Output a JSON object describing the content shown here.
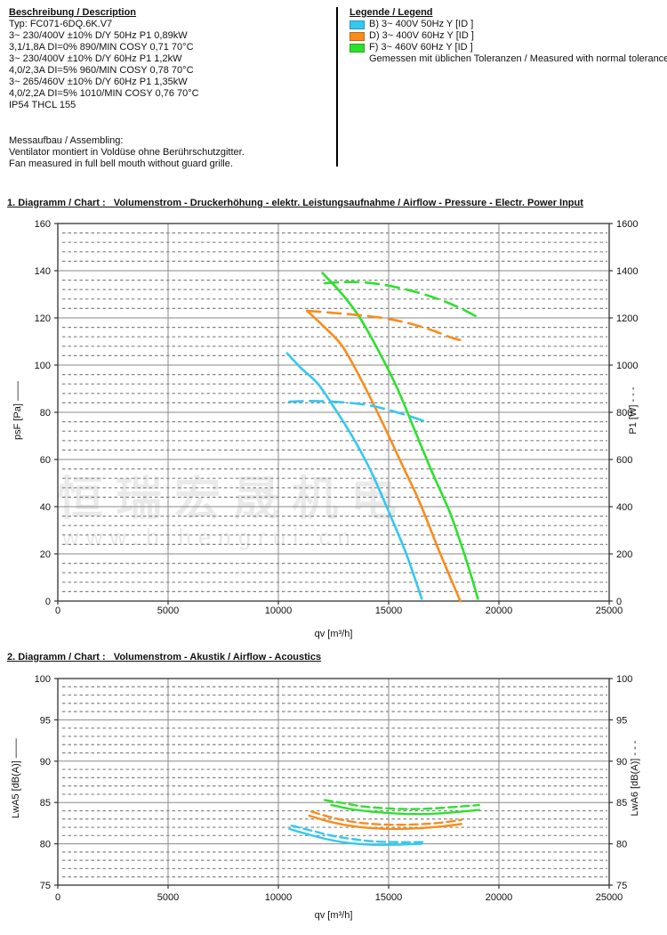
{
  "description": {
    "heading": "Beschreibung / Description",
    "lines": [
      "Typ: FC071-6DQ.6K.V7",
      "3~ 230/400V ±10% D/Y 50Hz P1 0,89kW",
      "3,1/1,8A DI=0% 890/MIN COSY 0,71 70°C",
      "3~ 230/400V ±10% D/Y 60Hz P1 1,2kW",
      "4,0/2,3A DI=5% 960/MIN COSY 0,78 70°C",
      "3~ 265/460V ±10% D/Y 60Hz P1 1,35kW",
      "4,0/2,2A DI=5% 1010/MIN COSY 0,76 70°C",
      "IP54 THCL 155"
    ],
    "assembling": [
      "Messaufbau / Assembling:",
      "Ventilator montiert in Voldüse ohne Berührschutzgitter.",
      "Fan measured in full bell mouth without guard grille."
    ]
  },
  "legend": {
    "heading": "Legende / Legend",
    "items": [
      {
        "key": "B",
        "label": "B) 3~ 400V 50Hz Y [ID ]",
        "color": "#35c8f0"
      },
      {
        "key": "D",
        "label": "D) 3~ 400V 60Hz Y [ID ]",
        "color": "#fa8c1c"
      },
      {
        "key": "F",
        "label": "F) 3~ 460V 60Hz Y [ID ]",
        "color": "#2ee02e"
      }
    ],
    "note": "Gemessen mit üblichen Toleranzen / Measured with normal tolerances"
  },
  "watermark": {
    "text": "恒瑞宏晟机电",
    "url": "www.bjhengrui.cn"
  },
  "chart_data": [
    {
      "type": "line",
      "title": "1. Diagramm / Chart :   Volumenstrom - Druckerhöhung - elektr. Leistungsaufnahme / Airflow - Pressure - Electr. Power Input",
      "xlabel": "qv [m³/h]",
      "ylabel_left": "psF [Pa] ——",
      "ylabel_right": "P1 [W] - - -",
      "xlim": [
        0,
        25000
      ],
      "xticks": [
        0,
        5000,
        10000,
        15000,
        20000,
        25000
      ],
      "ylim_left": [
        0,
        160
      ],
      "yticks_left": [
        0,
        20,
        40,
        60,
        80,
        100,
        120,
        140,
        160
      ],
      "ylim_right": [
        0,
        1600
      ],
      "yticks_right": [
        0,
        200,
        400,
        600,
        800,
        1000,
        1200,
        1400,
        1600
      ],
      "minor_step": 4,
      "grid": true,
      "legend_position": "top-right-of-page",
      "series": [
        {
          "name": "B-psF",
          "legend": "B) 3~ 400V 50Hz Y",
          "axis": "left",
          "style": "solid",
          "color": "#35c8f0",
          "points": [
            [
              10400,
              105
            ],
            [
              11000,
              99
            ],
            [
              11800,
              92
            ],
            [
              12600,
              81
            ],
            [
              13400,
              69
            ],
            [
              14200,
              55
            ],
            [
              15000,
              38
            ],
            [
              15800,
              20
            ],
            [
              16500,
              1
            ]
          ]
        },
        {
          "name": "D-psF",
          "legend": "D) 3~ 400V 60Hz Y",
          "axis": "left",
          "style": "solid",
          "color": "#fa8c1c",
          "points": [
            [
              11300,
              123
            ],
            [
              12100,
              116
            ],
            [
              12900,
              108
            ],
            [
              13800,
              93
            ],
            [
              14700,
              76
            ],
            [
              15600,
              58
            ],
            [
              16400,
              42
            ],
            [
              17300,
              21
            ],
            [
              18250,
              0
            ]
          ]
        },
        {
          "name": "F-psF",
          "legend": "F) 3~ 460V 60Hz Y",
          "axis": "left",
          "style": "solid",
          "color": "#2ee02e",
          "points": [
            [
              12000,
              139
            ],
            [
              12900,
              130
            ],
            [
              13700,
              120
            ],
            [
              14600,
              105
            ],
            [
              15400,
              90
            ],
            [
              16200,
              72
            ],
            [
              17000,
              54
            ],
            [
              17800,
              37
            ],
            [
              18500,
              18
            ],
            [
              19050,
              1
            ]
          ]
        },
        {
          "name": "B-P1",
          "legend": "B) 3~ 400V 50Hz Y",
          "axis": "right",
          "style": "dashed",
          "color": "#35c8f0",
          "points": [
            [
              10500,
              845
            ],
            [
              11400,
              848
            ],
            [
              12300,
              846
            ],
            [
              13200,
              840
            ],
            [
              14100,
              830
            ],
            [
              15000,
              810
            ],
            [
              15900,
              785
            ],
            [
              16600,
              763
            ]
          ]
        },
        {
          "name": "D-P1",
          "legend": "D) 3~ 400V 60Hz Y",
          "axis": "right",
          "style": "dashed",
          "color": "#fa8c1c",
          "points": [
            [
              11300,
              1230
            ],
            [
              12400,
              1222
            ],
            [
              13500,
              1213
            ],
            [
              14700,
              1200
            ],
            [
              15800,
              1180
            ],
            [
              16900,
              1150
            ],
            [
              17800,
              1118
            ],
            [
              18300,
              1105
            ]
          ]
        },
        {
          "name": "F-P1",
          "legend": "F) 3~ 460V 60Hz Y",
          "axis": "right",
          "style": "dashed",
          "color": "#2ee02e",
          "points": [
            [
              12100,
              1347
            ],
            [
              13000,
              1352
            ],
            [
              13900,
              1350
            ],
            [
              14800,
              1340
            ],
            [
              15900,
              1318
            ],
            [
              17000,
              1288
            ],
            [
              18100,
              1248
            ],
            [
              19100,
              1200
            ]
          ]
        }
      ]
    },
    {
      "type": "line",
      "title": "2. Diagramm / Chart :   Volumenstrom - Akustik / Airflow - Acoustics",
      "xlabel": "qv [m³/h]",
      "ylabel_left": "LwA5 [dB(A)] ——",
      "ylabel_right": "LwA6 [dB(A)] - - -",
      "xlim": [
        0,
        25000
      ],
      "xticks": [
        0,
        5000,
        10000,
        15000,
        20000,
        25000
      ],
      "ylim_left": [
        75,
        100
      ],
      "yticks_left": [
        75,
        80,
        85,
        90,
        95,
        100
      ],
      "ylim_right": [
        75,
        100
      ],
      "yticks_right": [
        75,
        80,
        85,
        90,
        95,
        100
      ],
      "minor_step": 1,
      "grid": true,
      "series": [
        {
          "name": "B-LwA5",
          "legend": "B) 3~ 400V 50Hz Y",
          "axis": "left",
          "style": "solid",
          "color": "#35c8f0",
          "points": [
            [
              10500,
              81.8
            ],
            [
              11400,
              81.1
            ],
            [
              12300,
              80.5
            ],
            [
              13200,
              80.1
            ],
            [
              14200,
              79.9
            ],
            [
              15300,
              79.9
            ],
            [
              16500,
              80.0
            ]
          ]
        },
        {
          "name": "D-LwA5",
          "legend": "D) 3~ 400V 60Hz Y",
          "axis": "left",
          "style": "solid",
          "color": "#fa8c1c",
          "points": [
            [
              11400,
              83.4
            ],
            [
              12300,
              82.7
            ],
            [
              13200,
              82.2
            ],
            [
              14200,
              81.9
            ],
            [
              15300,
              81.8
            ],
            [
              16500,
              81.9
            ],
            [
              17400,
              82.1
            ],
            [
              18300,
              82.4
            ]
          ]
        },
        {
          "name": "F-LwA5",
          "legend": "F) 3~ 460V 60Hz Y",
          "axis": "left",
          "style": "solid",
          "color": "#2ee02e",
          "points": [
            [
              12400,
              84.7
            ],
            [
              13300,
              84.2
            ],
            [
              14200,
              83.9
            ],
            [
              15200,
              83.7
            ],
            [
              16300,
              83.6
            ],
            [
              17400,
              83.7
            ],
            [
              18300,
              83.9
            ],
            [
              19100,
              84.1
            ]
          ]
        },
        {
          "name": "B-LwA6",
          "legend": "B) 3~ 400V 50Hz Y",
          "axis": "right",
          "style": "dashed",
          "color": "#35c8f0",
          "points": [
            [
              10600,
              82.2
            ],
            [
              11500,
              81.6
            ],
            [
              12400,
              81.0
            ],
            [
              13300,
              80.6
            ],
            [
              14300,
              80.3
            ],
            [
              15400,
              80.2
            ],
            [
              16600,
              80.2
            ]
          ]
        },
        {
          "name": "D-LwA6",
          "legend": "D) 3~ 400V 60Hz Y",
          "axis": "right",
          "style": "dashed",
          "color": "#fa8c1c",
          "points": [
            [
              11500,
              83.9
            ],
            [
              12400,
              83.2
            ],
            [
              13300,
              82.7
            ],
            [
              14300,
              82.4
            ],
            [
              15400,
              82.3
            ],
            [
              16600,
              82.4
            ],
            [
              17500,
              82.6
            ],
            [
              18300,
              82.9
            ]
          ]
        },
        {
          "name": "F-LwA6",
          "legend": "F) 3~ 460V 60Hz Y",
          "axis": "right",
          "style": "dashed",
          "color": "#2ee02e",
          "points": [
            [
              12100,
              85.3
            ],
            [
              13000,
              84.9
            ],
            [
              13900,
              84.5
            ],
            [
              14900,
              84.3
            ],
            [
              16000,
              84.2
            ],
            [
              17100,
              84.3
            ],
            [
              18200,
              84.5
            ],
            [
              19100,
              84.7
            ]
          ]
        }
      ]
    }
  ]
}
